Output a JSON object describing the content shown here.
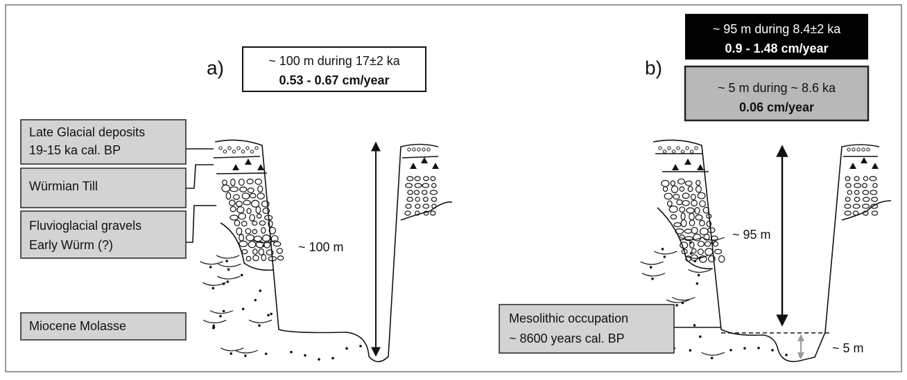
{
  "panel_a": {
    "label": "a)",
    "rate_box": [
      "~ 100 m during 17±2 ka",
      "0.53 - 0.67 cm/year"
    ],
    "layers": [
      [
        "Late Glacial deposits",
        "19-15 ka cal. BP"
      ],
      [
        "Würmian Till"
      ],
      [
        "Fluvioglacial gravels",
        "Early Würm (?)"
      ],
      [
        "Miocene Molasse"
      ]
    ],
    "depth_label": "~ 100 m"
  },
  "panel_b": {
    "label": "b)",
    "rate_box_total": [
      "~ 95 m during 8.4±2 ka",
      "0.9 - 1.48 cm/year"
    ],
    "rate_box_recent": [
      "~ 5 m during  ~ 8.6 ka",
      "0.06 cm/year"
    ],
    "depth_label": "~ 95 m",
    "occupation": [
      "Mesolithic occupation",
      "~ 8600 years cal. BP"
    ],
    "recent_depth_label": "~ 5 m"
  }
}
